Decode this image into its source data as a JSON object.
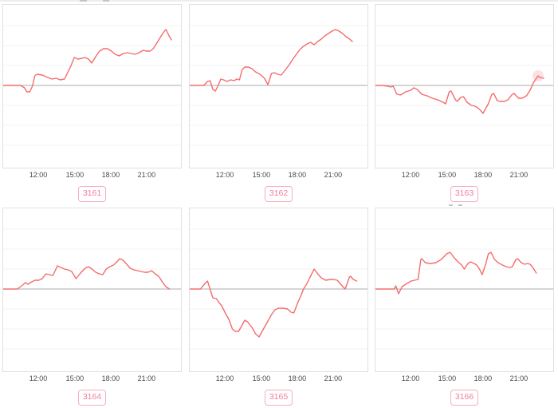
{
  "page": {
    "background": "#ffffff"
  },
  "colors": {
    "line": "#f56c6c",
    "zero_line": "#ababab",
    "gridline": "#f3f3f3",
    "box_border": "#e0e0e0",
    "tag_border": "#f7adbe",
    "tag_text": "#ee7f9d",
    "tick_text": "#4a4a4a",
    "halo": "#f8c6d1"
  },
  "chart_data": [
    {
      "id": "3161",
      "type": "line",
      "tag": "3161",
      "x_ticks": [
        "12:00",
        "15:00",
        "18:00",
        "21:00"
      ],
      "tick_x_pct": [
        20,
        40.4,
        60.4,
        80.4
      ],
      "y_axis": "unlabeled; gray zero baseline centered; faint gridlines every 25px",
      "points": [
        [
          0,
          0
        ],
        [
          5,
          0
        ],
        [
          9.8,
          0
        ],
        [
          12,
          -3
        ],
        [
          13.3,
          -8
        ],
        [
          15,
          -8
        ],
        [
          16.4,
          -1
        ],
        [
          17.8,
          12
        ],
        [
          19,
          14
        ],
        [
          22,
          13
        ],
        [
          25,
          10
        ],
        [
          27.5,
          8
        ],
        [
          29.8,
          9
        ],
        [
          32,
          7
        ],
        [
          34.5,
          8
        ],
        [
          37.8,
          23
        ],
        [
          40,
          35
        ],
        [
          42,
          33
        ],
        [
          44.4,
          34
        ],
        [
          46,
          35
        ],
        [
          48,
          33
        ],
        [
          49.8,
          28
        ],
        [
          52,
          36
        ],
        [
          54.2,
          43
        ],
        [
          56.4,
          46
        ],
        [
          58.7,
          46
        ],
        [
          60.9,
          43
        ],
        [
          63,
          39
        ],
        [
          65.3,
          37
        ],
        [
          67.6,
          40
        ],
        [
          69.8,
          41
        ],
        [
          72,
          40
        ],
        [
          74.2,
          39
        ],
        [
          76.4,
          41
        ],
        [
          78.7,
          44
        ],
        [
          80.4,
          43
        ],
        [
          82.7,
          43
        ],
        [
          84.4,
          46
        ],
        [
          86.7,
          54
        ],
        [
          88.9,
          62
        ],
        [
          90.7,
          68
        ],
        [
          91.6,
          70
        ],
        [
          93.3,
          62
        ],
        [
          94.7,
          57
        ]
      ]
    },
    {
      "id": "3162",
      "type": "line",
      "tag": "3162",
      "x_ticks": [
        "12:00",
        "15:00",
        "18:00",
        "21:00"
      ],
      "tick_x_pct": [
        20,
        40.4,
        60.4,
        80.4
      ],
      "y_axis": "unlabeled; gray zero baseline centered; faint gridlines every 25px",
      "points": [
        [
          0,
          0
        ],
        [
          4,
          0
        ],
        [
          8,
          0
        ],
        [
          10,
          5
        ],
        [
          11.5,
          6
        ],
        [
          13,
          -5
        ],
        [
          14.5,
          -7
        ],
        [
          16,
          0
        ],
        [
          17.5,
          8
        ],
        [
          19,
          7
        ],
        [
          21,
          5
        ],
        [
          23,
          7
        ],
        [
          25,
          6
        ],
        [
          26.5,
          8
        ],
        [
          28,
          7
        ],
        [
          29.5,
          20
        ],
        [
          31,
          23
        ],
        [
          33,
          23
        ],
        [
          35,
          21
        ],
        [
          37,
          17
        ],
        [
          39.5,
          14
        ],
        [
          42,
          9
        ],
        [
          44,
          1
        ],
        [
          46,
          15
        ],
        [
          47.5,
          16
        ],
        [
          49.5,
          14
        ],
        [
          51.5,
          13
        ],
        [
          54,
          20
        ],
        [
          56,
          26
        ],
        [
          58,
          33
        ],
        [
          60,
          39
        ],
        [
          62,
          45
        ],
        [
          64,
          49
        ],
        [
          66,
          52
        ],
        [
          68,
          54
        ],
        [
          70,
          51
        ],
        [
          72,
          55
        ],
        [
          74,
          58
        ],
        [
          76,
          62
        ],
        [
          78,
          65
        ],
        [
          80,
          68
        ],
        [
          82,
          70
        ],
        [
          84,
          68
        ],
        [
          86,
          65
        ],
        [
          88,
          61
        ],
        [
          90,
          58
        ],
        [
          91.5,
          55
        ]
      ]
    },
    {
      "id": "3163",
      "type": "line",
      "tag": "3163",
      "x_ticks": [
        "12:00",
        "15:00",
        "18:00",
        "21:00"
      ],
      "tick_x_pct": [
        20,
        40.4,
        60.4,
        80.4
      ],
      "y_axis": "unlabeled; gray zero baseline centered; faint gridlines every 25px",
      "halo_point": [
        91.5,
        12
      ],
      "points": [
        [
          0,
          0
        ],
        [
          4,
          0
        ],
        [
          7,
          -1
        ],
        [
          8.5,
          -2
        ],
        [
          10,
          -1
        ],
        [
          12,
          -11
        ],
        [
          14,
          -12
        ],
        [
          17,
          -8
        ],
        [
          20,
          -6
        ],
        [
          21.5,
          -3
        ],
        [
          23.5,
          -5
        ],
        [
          26,
          -11
        ],
        [
          29,
          -13
        ],
        [
          32,
          -16
        ],
        [
          35,
          -18
        ],
        [
          38,
          -21
        ],
        [
          39.5,
          -23
        ],
        [
          41.5,
          -8
        ],
        [
          42.5,
          -7
        ],
        [
          45,
          -18
        ],
        [
          46,
          -20
        ],
        [
          48,
          -15
        ],
        [
          49.5,
          -14
        ],
        [
          51.5,
          -21
        ],
        [
          54,
          -25
        ],
        [
          56,
          -26
        ],
        [
          57.5,
          -28
        ],
        [
          59,
          -31
        ],
        [
          60.5,
          -35
        ],
        [
          63.5,
          -23
        ],
        [
          65.5,
          -11
        ],
        [
          66.5,
          -10
        ],
        [
          68.5,
          -19
        ],
        [
          70,
          -20
        ],
        [
          72.5,
          -20
        ],
        [
          74.5,
          -18
        ],
        [
          77,
          -11
        ],
        [
          78,
          -10
        ],
        [
          80.5,
          -16
        ],
        [
          82.5,
          -16
        ],
        [
          85,
          -13
        ],
        [
          87,
          -6
        ],
        [
          89,
          4
        ],
        [
          91.5,
          12
        ],
        [
          92.5,
          10
        ],
        [
          94.7,
          9
        ]
      ]
    },
    {
      "id": "3164",
      "type": "line",
      "tag": "3164",
      "x_ticks": [
        "12:00",
        "15:00",
        "18:00",
        "21:00"
      ],
      "tick_x_pct": [
        20,
        40.4,
        60.4,
        80.4
      ],
      "y_axis": "unlabeled; gray zero baseline centered; faint gridlines every 25px",
      "points": [
        [
          0,
          0
        ],
        [
          4,
          0
        ],
        [
          8,
          0
        ],
        [
          11,
          5
        ],
        [
          12.5,
          8
        ],
        [
          14,
          6
        ],
        [
          16,
          9
        ],
        [
          18,
          11
        ],
        [
          20,
          11
        ],
        [
          22,
          13
        ],
        [
          24,
          19
        ],
        [
          26,
          18
        ],
        [
          28,
          17
        ],
        [
          30.5,
          29
        ],
        [
          32.5,
          27
        ],
        [
          34.5,
          25
        ],
        [
          36.5,
          24
        ],
        [
          38.5,
          22
        ],
        [
          41,
          13
        ],
        [
          43.5,
          20
        ],
        [
          46,
          26
        ],
        [
          48,
          28
        ],
        [
          50,
          25
        ],
        [
          52,
          21
        ],
        [
          54,
          19
        ],
        [
          56,
          18
        ],
        [
          58,
          25
        ],
        [
          60,
          28
        ],
        [
          62,
          30
        ],
        [
          64,
          34
        ],
        [
          65.5,
          38
        ],
        [
          67.5,
          36
        ],
        [
          69.5,
          31
        ],
        [
          71.5,
          26
        ],
        [
          73.5,
          24
        ],
        [
          75.5,
          23
        ],
        [
          77.5,
          22
        ],
        [
          79.5,
          21
        ],
        [
          81.5,
          21
        ],
        [
          83.5,
          23
        ],
        [
          85.5,
          19
        ],
        [
          87.5,
          16
        ],
        [
          89.5,
          9
        ],
        [
          91.5,
          3
        ],
        [
          93.5,
          0
        ]
      ]
    },
    {
      "id": "3165",
      "type": "line",
      "tag": "3165",
      "x_ticks": [
        "12:00",
        "15:00",
        "18:00",
        "21:00"
      ],
      "tick_x_pct": [
        20,
        40.4,
        60.4,
        80.4
      ],
      "y_axis": "unlabeled; gray zero baseline centered; faint gridlines every 25px",
      "points": [
        [
          0,
          0
        ],
        [
          3,
          0
        ],
        [
          6,
          0
        ],
        [
          9,
          8
        ],
        [
          10,
          10
        ],
        [
          13,
          -11
        ],
        [
          15,
          -12
        ],
        [
          16.5,
          -17
        ],
        [
          18,
          -21
        ],
        [
          20,
          -30
        ],
        [
          22,
          -38
        ],
        [
          24,
          -50
        ],
        [
          25.5,
          -53
        ],
        [
          27.5,
          -53
        ],
        [
          30,
          -43
        ],
        [
          31,
          -39
        ],
        [
          32.5,
          -41
        ],
        [
          35,
          -48
        ],
        [
          37,
          -56
        ],
        [
          39,
          -60
        ],
        [
          41.5,
          -50
        ],
        [
          44,
          -40
        ],
        [
          46,
          -32
        ],
        [
          48,
          -26
        ],
        [
          50,
          -24
        ],
        [
          52.5,
          -24
        ],
        [
          55,
          -25
        ],
        [
          57,
          -29
        ],
        [
          58.5,
          -30
        ],
        [
          61,
          -16
        ],
        [
          63,
          -6
        ],
        [
          64,
          0
        ],
        [
          66,
          7
        ],
        [
          67.5,
          14
        ],
        [
          70,
          25
        ],
        [
          72,
          19
        ],
        [
          74,
          14
        ],
        [
          76.5,
          11
        ],
        [
          79,
          12
        ],
        [
          81,
          12
        ],
        [
          83,
          11
        ],
        [
          86.5,
          2
        ],
        [
          87.5,
          0
        ],
        [
          89.8,
          15
        ],
        [
          90.5,
          16
        ],
        [
          92,
          12
        ],
        [
          94,
          10
        ]
      ]
    },
    {
      "id": "3166",
      "type": "line",
      "tag": "3166",
      "x_ticks": [
        "12:00",
        "15:00",
        "18:00",
        "21:00"
      ],
      "tick_x_pct": [
        20,
        40.4,
        60.4,
        80.4
      ],
      "y_axis": "unlabeled; gray zero baseline centered; faint gridlines every 25px",
      "points": [
        [
          0,
          0
        ],
        [
          4,
          0
        ],
        [
          8,
          0
        ],
        [
          10.5,
          0
        ],
        [
          11.5,
          4
        ],
        [
          13,
          -6
        ],
        [
          15,
          3
        ],
        [
          17,
          6
        ],
        [
          20,
          10
        ],
        [
          22,
          11
        ],
        [
          24,
          12
        ],
        [
          25.5,
          37
        ],
        [
          26.2,
          38
        ],
        [
          28,
          33
        ],
        [
          31,
          32
        ],
        [
          34,
          33
        ],
        [
          37,
          37
        ],
        [
          40,
          44
        ],
        [
          42,
          46
        ],
        [
          44,
          40
        ],
        [
          46,
          35
        ],
        [
          48.5,
          30
        ],
        [
          50,
          25
        ],
        [
          52,
          32
        ],
        [
          53.5,
          34
        ],
        [
          55.5,
          32
        ],
        [
          57,
          30
        ],
        [
          58.5,
          25
        ],
        [
          60,
          18
        ],
        [
          62,
          31
        ],
        [
          63.5,
          44
        ],
        [
          65,
          46
        ],
        [
          67,
          37
        ],
        [
          69,
          33
        ],
        [
          71.5,
          30
        ],
        [
          73.5,
          28
        ],
        [
          75.5,
          27
        ],
        [
          77,
          28
        ],
        [
          79,
          37
        ],
        [
          80,
          38
        ],
        [
          82,
          33
        ],
        [
          84,
          31
        ],
        [
          85.5,
          32
        ],
        [
          87,
          31
        ],
        [
          88.5,
          27
        ],
        [
          90.5,
          20
        ]
      ]
    }
  ]
}
